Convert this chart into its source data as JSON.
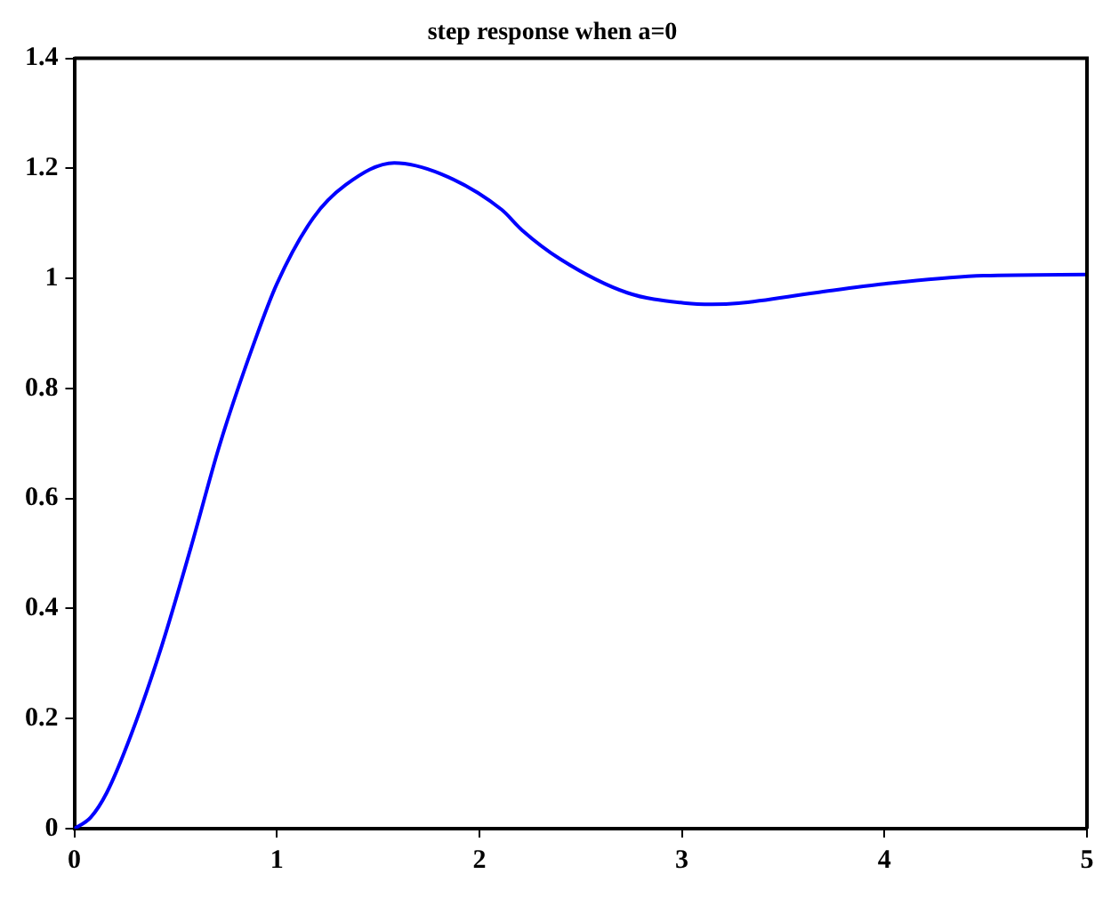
{
  "chart_data": {
    "type": "line",
    "title": "step response when a=0",
    "x": [
      0,
      0.08,
      0.16,
      0.28,
      0.43,
      0.575,
      0.72,
      0.885,
      1.0,
      1.18,
      1.34,
      1.58,
      1.81,
      2.11,
      2.21,
      2.4,
      2.73,
      3.02,
      3.15,
      3.28,
      3.66,
      4.0,
      4.49,
      5.0
    ],
    "series": [
      {
        "color": "#0000ff",
        "values": [
          0,
          0.02,
          0.065,
          0.17,
          0.33,
          0.51,
          0.7,
          0.88,
          0.99,
          1.11,
          1.17,
          1.21,
          1.19,
          1.125,
          1.088,
          1.035,
          0.974,
          0.955,
          0.953,
          0.955,
          0.974,
          0.99,
          1.005,
          1.007
        ]
      }
    ],
    "xlim": [
      0,
      5
    ],
    "xticks": [
      0,
      1,
      2,
      3,
      4,
      5
    ],
    "ylim": [
      0,
      1.4
    ],
    "yticks": [
      0,
      0.2,
      0.4,
      0.6,
      0.8,
      1,
      1.2,
      1.4
    ],
    "grid": false,
    "legend": false,
    "marker": "none",
    "line_style": "solid"
  }
}
